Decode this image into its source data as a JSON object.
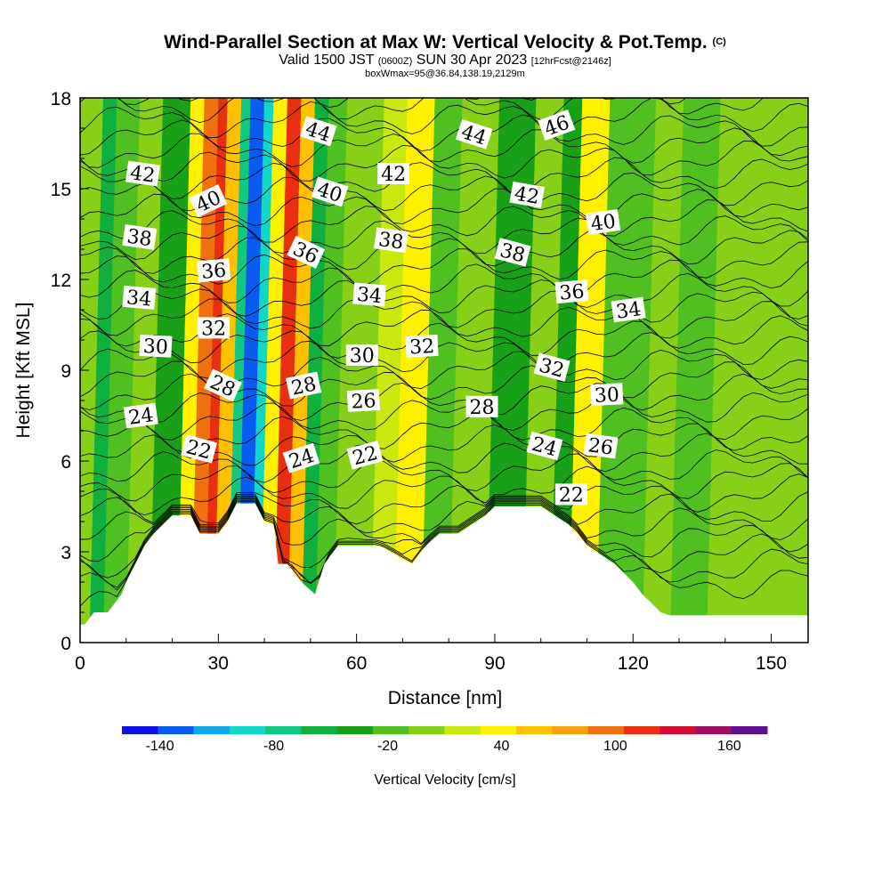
{
  "title": {
    "main": "Wind-Parallel Section at Max W: Vertical Velocity & Pot.Temp.",
    "copyright": "(C)",
    "valid_prefix": "Valid 1500 JST",
    "utc": "(0600Z)",
    "date": "SUN 30 Apr 2023",
    "forecast": "[12hrFcst@2146z]",
    "box": "boxWmax=95@36.84,138.19,2129m"
  },
  "chart_data": {
    "type": "heatmap",
    "subtype": "cross-section contour (filled vertical velocity + potential temperature contours)",
    "xlabel": "Distance [nm]",
    "ylabel": "Height [Kft MSL]",
    "xlim": [
      0,
      158
    ],
    "ylim": [
      0,
      18
    ],
    "x_ticks": [
      0,
      30,
      60,
      90,
      120,
      150
    ],
    "y_ticks": [
      0,
      3,
      6,
      9,
      12,
      15,
      18
    ],
    "terrain_profile": {
      "x": [
        0,
        0.5,
        1,
        3,
        6,
        9,
        10,
        12,
        14,
        16,
        18,
        20,
        24,
        26,
        30,
        32,
        34,
        36,
        38,
        40,
        42,
        43,
        45,
        48,
        51,
        53,
        56,
        60,
        65,
        72,
        75,
        78,
        82,
        85,
        88,
        90,
        95,
        100,
        103,
        106,
        108,
        110,
        113,
        116,
        118,
        120,
        122,
        124,
        126,
        128,
        130,
        131,
        158
      ],
      "height_kft": [
        0.6,
        0.6,
        0.6,
        1.0,
        1.0,
        1.6,
        2.0,
        2.6,
        3.2,
        3.6,
        3.9,
        4.2,
        4.2,
        3.6,
        3.6,
        4.0,
        4.6,
        4.6,
        4.6,
        4.0,
        3.9,
        2.6,
        2.6,
        2.0,
        1.6,
        2.6,
        3.2,
        3.2,
        3.2,
        2.6,
        3.2,
        3.6,
        3.6,
        3.9,
        4.2,
        4.5,
        4.5,
        4.5,
        4.2,
        3.9,
        3.6,
        3.2,
        2.9,
        2.6,
        2.3,
        2.0,
        1.6,
        1.3,
        1.0,
        0.9,
        0.9,
        0.9,
        0.9
      ]
    },
    "velocity_columns": [
      {
        "x": 0,
        "w": 2,
        "value": 10
      },
      {
        "x": 2,
        "w": 3,
        "value": -50
      },
      {
        "x": 5,
        "w": 5,
        "value": -20
      },
      {
        "x": 10,
        "w": 5,
        "value": 0
      },
      {
        "x": 15,
        "w": 6,
        "value": -30
      },
      {
        "x": 21,
        "w": 3,
        "value": 50
      },
      {
        "x": 24,
        "w": 3,
        "value": 110
      },
      {
        "x": 27,
        "w": 2,
        "value": 130
      },
      {
        "x": 29,
        "w": 3,
        "value": 70
      },
      {
        "x": 32,
        "w": 2,
        "value": -80
      },
      {
        "x": 34,
        "w": 3,
        "value": -140
      },
      {
        "x": 37,
        "w": 2,
        "value": -90
      },
      {
        "x": 39,
        "w": 3,
        "value": 40
      },
      {
        "x": 42,
        "w": 3,
        "value": 130
      },
      {
        "x": 45,
        "w": 3,
        "value": 60
      },
      {
        "x": 48,
        "w": 3,
        "value": -60
      },
      {
        "x": 51,
        "w": 4,
        "value": -20
      },
      {
        "x": 55,
        "w": 8,
        "value": 0
      },
      {
        "x": 63,
        "w": 5,
        "value": 20
      },
      {
        "x": 68,
        "w": 6,
        "value": 40
      },
      {
        "x": 74,
        "w": 6,
        "value": -20
      },
      {
        "x": 80,
        "w": 8,
        "value": 10
      },
      {
        "x": 88,
        "w": 8,
        "value": -40
      },
      {
        "x": 96,
        "w": 6,
        "value": 0
      },
      {
        "x": 102,
        "w": 4,
        "value": -30
      },
      {
        "x": 106,
        "w": 6,
        "value": 40
      },
      {
        "x": 112,
        "w": 10,
        "value": -20
      },
      {
        "x": 122,
        "w": 6,
        "value": 0
      },
      {
        "x": 128,
        "w": 8,
        "value": -20
      },
      {
        "x": 136,
        "w": 8,
        "value": 0
      },
      {
        "x": 144,
        "w": 6,
        "value": 10
      },
      {
        "x": 150,
        "w": 8,
        "value": 0
      }
    ],
    "theta_contours": {
      "count": 36,
      "levels_kft_at_left": [
        1.2,
        1.7,
        2.2,
        2.7,
        3.2,
        3.7,
        4.2,
        4.7,
        5.2,
        5.7,
        6.2,
        6.7,
        7.2,
        7.7,
        8.2,
        8.7,
        9.2,
        9.7,
        10.2,
        10.7,
        11.2,
        11.7,
        12.2,
        12.7,
        13.2,
        13.7,
        14.2,
        14.7,
        15.2,
        15.7,
        16.2,
        16.7,
        17.2,
        17.7,
        18.2,
        18.7
      ]
    },
    "contour_labels": [
      {
        "text": "42",
        "x": 13.6,
        "y": 15.5,
        "rot": 8
      },
      {
        "text": "40",
        "x": 27.8,
        "y": 14.6,
        "rot": -25
      },
      {
        "text": "44",
        "x": 51.7,
        "y": 16.9,
        "rot": 18
      },
      {
        "text": "44",
        "x": 85.5,
        "y": 16.8,
        "rot": 18
      },
      {
        "text": "46",
        "x": 103.4,
        "y": 17.1,
        "rot": -20
      },
      {
        "text": "42",
        "x": 68.0,
        "y": 15.5,
        "rot": 0
      },
      {
        "text": "40",
        "x": 54.2,
        "y": 14.9,
        "rot": 18
      },
      {
        "text": "42",
        "x": 97.0,
        "y": 14.8,
        "rot": 10
      },
      {
        "text": "40",
        "x": 113.5,
        "y": 13.9,
        "rot": -8
      },
      {
        "text": "38",
        "x": 12.9,
        "y": 13.4,
        "rot": 8
      },
      {
        "text": "38",
        "x": 67.5,
        "y": 13.3,
        "rot": 8
      },
      {
        "text": "38",
        "x": 93.9,
        "y": 12.9,
        "rot": 15
      },
      {
        "text": "36",
        "x": 49.0,
        "y": 12.9,
        "rot": 25
      },
      {
        "text": "36",
        "x": 29.0,
        "y": 12.3,
        "rot": -5
      },
      {
        "text": "34",
        "x": 12.8,
        "y": 11.4,
        "rot": 5
      },
      {
        "text": "34",
        "x": 62.8,
        "y": 11.5,
        "rot": 5
      },
      {
        "text": "36",
        "x": 106.7,
        "y": 11.6,
        "rot": -5
      },
      {
        "text": "34",
        "x": 119.0,
        "y": 11.0,
        "rot": -8
      },
      {
        "text": "32",
        "x": 29.0,
        "y": 10.4,
        "rot": 0
      },
      {
        "text": "30",
        "x": 16.4,
        "y": 9.8,
        "rot": 3
      },
      {
        "text": "30",
        "x": 61.2,
        "y": 9.5,
        "rot": 0
      },
      {
        "text": "32",
        "x": 74.2,
        "y": 9.8,
        "rot": -3
      },
      {
        "text": "32",
        "x": 102.4,
        "y": 9.1,
        "rot": 15
      },
      {
        "text": "28",
        "x": 31.0,
        "y": 8.5,
        "rot": 25
      },
      {
        "text": "28",
        "x": 48.5,
        "y": 8.5,
        "rot": -12
      },
      {
        "text": "26",
        "x": 61.5,
        "y": 8.0,
        "rot": -3
      },
      {
        "text": "28",
        "x": 87.2,
        "y": 7.8,
        "rot": 0
      },
      {
        "text": "30",
        "x": 114.3,
        "y": 8.2,
        "rot": -3
      },
      {
        "text": "24",
        "x": 13.2,
        "y": 7.5,
        "rot": -8
      },
      {
        "text": "22",
        "x": 25.8,
        "y": 6.4,
        "rot": 15
      },
      {
        "text": "24",
        "x": 48.0,
        "y": 6.1,
        "rot": -18
      },
      {
        "text": "22",
        "x": 61.8,
        "y": 6.2,
        "rot": -15
      },
      {
        "text": "24",
        "x": 100.8,
        "y": 6.5,
        "rot": 15
      },
      {
        "text": "26",
        "x": 113.0,
        "y": 6.5,
        "rot": 8
      },
      {
        "text": "22",
        "x": 106.6,
        "y": 4.9,
        "rot": 0
      }
    ],
    "colorbar": {
      "title": "Vertical Velocity [cm/s]",
      "tick_labels": [
        "-140",
        "-80",
        "-20",
        "40",
        "100",
        "160"
      ],
      "tick_values": [
        -140,
        -80,
        -20,
        40,
        100,
        160
      ],
      "bins": [
        -160,
        -140,
        -120,
        -100,
        -80,
        -60,
        -40,
        -20,
        0,
        20,
        40,
        60,
        80,
        100,
        120,
        140,
        160,
        180
      ],
      "colors": [
        "#1010e8",
        "#0a5cf0",
        "#10a8e8",
        "#10d8c8",
        "#10c880",
        "#10b040",
        "#18a018",
        "#50c020",
        "#88d018",
        "#c8e810",
        "#fff000",
        "#ffc000",
        "#f8a010",
        "#f07010",
        "#e83010",
        "#d01030",
        "#a01060",
        "#601090"
      ]
    }
  }
}
